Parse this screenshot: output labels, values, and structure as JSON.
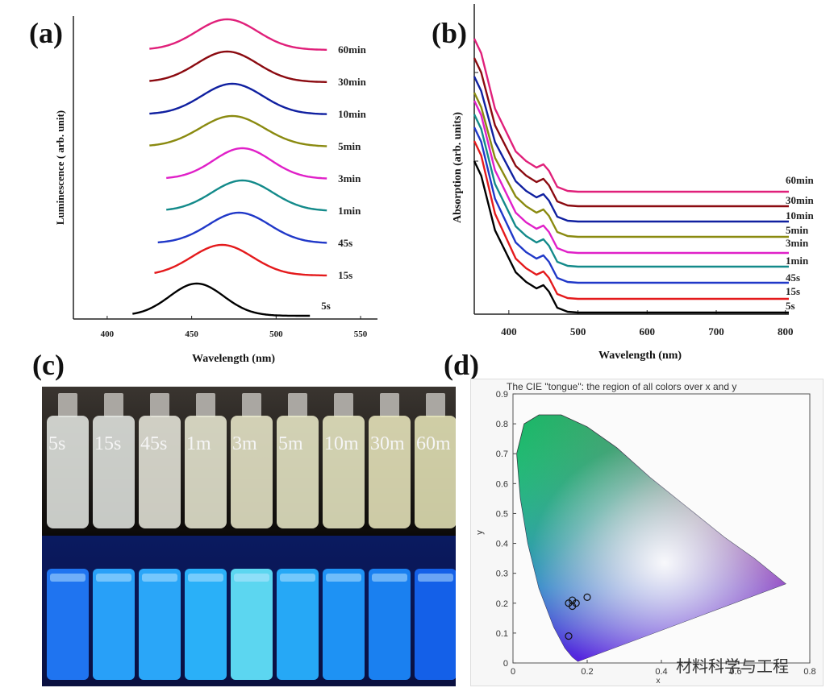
{
  "panels": {
    "a_letter": "(a)",
    "b_letter": "(b)",
    "c_letter": "(c)",
    "d_letter": "(d)"
  },
  "chart_data": [
    {
      "type": "line",
      "panel": "a",
      "xlabel": "Wavelength (nm)",
      "ylabel": "Luminescence ( arb. unit)",
      "xticks": [
        "400",
        "450",
        "500",
        "550"
      ],
      "xlim": [
        380,
        560
      ],
      "series": [
        {
          "name": "5s",
          "color": "#000000",
          "x_start": 415,
          "x_end": 520,
          "peak": 453,
          "width": 16
        },
        {
          "name": "15s",
          "color": "#e41a1c",
          "x_start": 428,
          "x_end": 530,
          "peak": 468,
          "width": 18
        },
        {
          "name": "45s",
          "color": "#2038c8",
          "x_start": 430,
          "x_end": 530,
          "peak": 478,
          "width": 18
        },
        {
          "name": "1min",
          "color": "#138a8a",
          "x_start": 435,
          "x_end": 530,
          "peak": 480,
          "width": 18
        },
        {
          "name": "3min",
          "color": "#e020c8",
          "x_start": 435,
          "x_end": 530,
          "peak": 480,
          "width": 17
        },
        {
          "name": "5min",
          "color": "#8a8a10",
          "x_start": 425,
          "x_end": 530,
          "peak": 474,
          "width": 19
        },
        {
          "name": "10min",
          "color": "#1020a0",
          "x_start": 425,
          "x_end": 530,
          "peak": 474,
          "width": 18
        },
        {
          "name": "30min",
          "color": "#8b0a10",
          "x_start": 425,
          "x_end": 530,
          "peak": 471,
          "width": 18
        },
        {
          "name": "60min",
          "color": "#e0207a",
          "x_start": 425,
          "x_end": 530,
          "peak": 471,
          "width": 18
        }
      ]
    },
    {
      "type": "line",
      "panel": "b",
      "xlabel": "Wavelength (nm)",
      "ylabel": "Absorption (arb. units)",
      "xticks": [
        "400",
        "500",
        "600",
        "700",
        "800"
      ],
      "xlim": [
        350,
        805
      ],
      "series": [
        {
          "name": "60min",
          "color": "#e0207a"
        },
        {
          "name": "30min",
          "color": "#8b0a10"
        },
        {
          "name": "10min",
          "color": "#1020a0"
        },
        {
          "name": "5min",
          "color": "#8a8a10"
        },
        {
          "name": "3min",
          "color": "#e020c8"
        },
        {
          "name": "1min",
          "color": "#138a8a"
        },
        {
          "name": "45s",
          "color": "#2038c8"
        },
        {
          "name": "15s",
          "color": "#e41a1c"
        },
        {
          "name": "5s",
          "color": "#000000"
        }
      ]
    },
    {
      "type": "scatter",
      "panel": "d",
      "title": "The CIE \"tongue\": the region of all colors over x and y",
      "xlabel": "x",
      "ylabel": "y",
      "xlim": [
        0,
        0.8
      ],
      "ylim": [
        0,
        0.9
      ],
      "xticks": [
        "0",
        "0.2",
        "0.4",
        "0.6",
        "0.8"
      ],
      "yticks": [
        "0",
        "0.1",
        "0.2",
        "0.3",
        "0.4",
        "0.5",
        "0.6",
        "0.7",
        "0.8",
        "0.9"
      ],
      "points": [
        {
          "x": 0.15,
          "y": 0.2
        },
        {
          "x": 0.16,
          "y": 0.21
        },
        {
          "x": 0.16,
          "y": 0.19
        },
        {
          "x": 0.17,
          "y": 0.2
        },
        {
          "x": 0.2,
          "y": 0.22
        },
        {
          "x": 0.15,
          "y": 0.09
        }
      ]
    }
  ],
  "vials": [
    "5s",
    "15s",
    "45s",
    "1m",
    "3m",
    "5m",
    "10m",
    "30m",
    "60m"
  ],
  "watermark": "材料科学与工程"
}
